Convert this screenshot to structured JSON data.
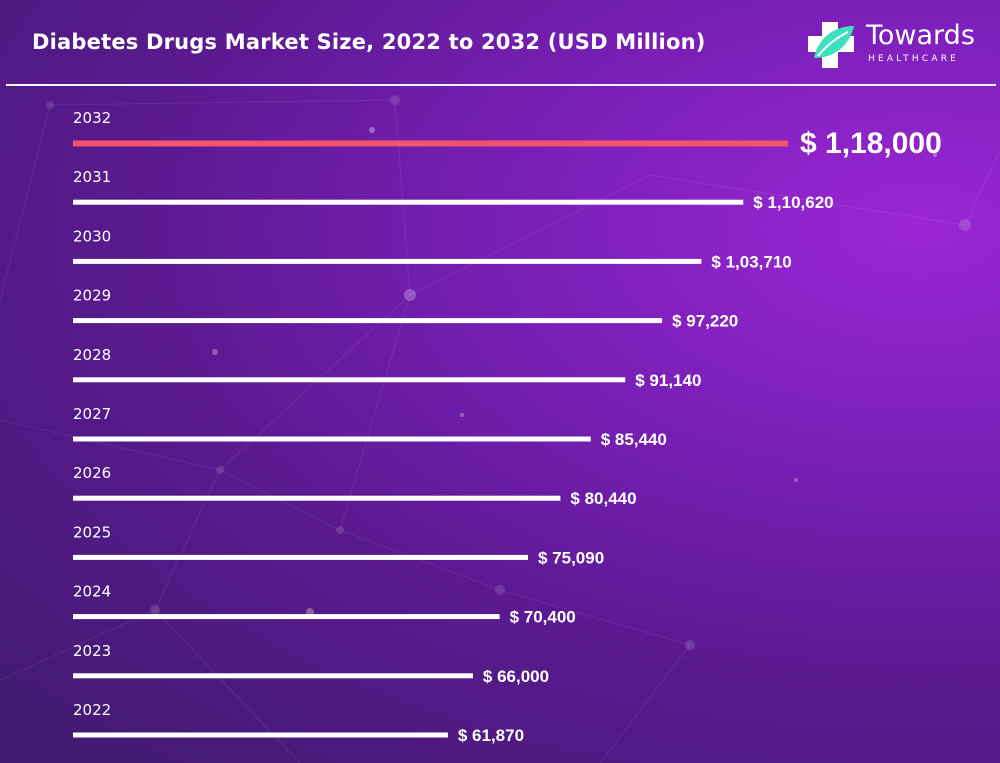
{
  "header": {
    "title": "Diabetes Drugs Market Size, 2022 to 2032 (USD Million)"
  },
  "logo": {
    "name": "Towards",
    "subtitle": "HEALTHCARE",
    "icon": "cross-leaf-icon"
  },
  "colors": {
    "background": "#5a1a8f",
    "bar_default": "#ffffff",
    "bar_highlight": "#f4536e",
    "logo_cross": "#ffffff",
    "logo_leaf": "#3fe0c0"
  },
  "chart_data": {
    "type": "bar",
    "orientation": "horizontal",
    "categories": [
      "2032",
      "2031",
      "2030",
      "2029",
      "2028",
      "2027",
      "2026",
      "2025",
      "2024",
      "2023",
      "2022"
    ],
    "values": [
      118000,
      110620,
      103710,
      97220,
      91140,
      85440,
      80440,
      75090,
      70400,
      66000,
      61870
    ],
    "value_labels": [
      "$ 1,18,000",
      "$ 1,10,620",
      "$ 1,03,710",
      "$ 97,220",
      "$ 91,140",
      "$ 85,440",
      "$ 80,440",
      "$ 75,090",
      "$ 70,400",
      "$ 66,000",
      "$ 61,870"
    ],
    "highlight_category": "2032",
    "title": "Diabetes Drugs Market Size, 2022 to 2032 (USD Million)",
    "xlabel": "",
    "ylabel": "",
    "grid": false,
    "legend": "none"
  }
}
